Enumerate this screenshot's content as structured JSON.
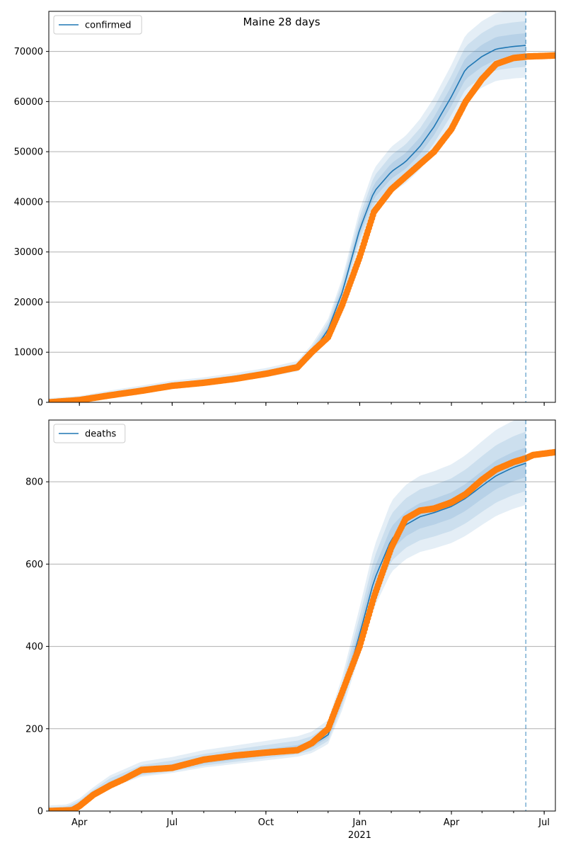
{
  "title": "Maine 28 days",
  "chart_data": [
    {
      "type": "line",
      "name": "confirmed-panel",
      "legend": [
        "confirmed"
      ],
      "legend_position": "top-left",
      "grid": "horizontal",
      "x_range": [
        "2020-03-02",
        "2021-07-12"
      ],
      "ylim": [
        0,
        78000
      ],
      "yticks": [
        0,
        10000,
        20000,
        30000,
        40000,
        50000,
        60000,
        70000
      ],
      "forecast_line_date": "2021-06-13",
      "colors": {
        "model": "#1f77b4",
        "observed": "#ff7f0e"
      },
      "model": {
        "dates": [
          "2020-03-02",
          "2020-04-01",
          "2020-05-01",
          "2020-06-01",
          "2020-07-01",
          "2020-08-01",
          "2020-09-01",
          "2020-10-01",
          "2020-11-01",
          "2020-11-15",
          "2020-12-01",
          "2020-12-15",
          "2021-01-01",
          "2021-01-15",
          "2021-02-01",
          "2021-02-15",
          "2021-03-01",
          "2021-03-15",
          "2021-04-01",
          "2021-04-15",
          "2021-05-01",
          "2021-05-15",
          "2021-06-01",
          "2021-06-13"
        ],
        "values": [
          0,
          400,
          1400,
          2300,
          3200,
          3800,
          4600,
          5500,
          6800,
          9800,
          14500,
          22000,
          34500,
          42000,
          46000,
          48000,
          51000,
          55000,
          61000,
          66500,
          69000,
          70500,
          71000,
          71200
        ],
        "band_pct": [
          0.03,
          0.06,
          0.09
        ]
      },
      "observed": {
        "dates": [
          "2020-03-02",
          "2020-04-01",
          "2020-05-01",
          "2020-06-01",
          "2020-07-01",
          "2020-08-01",
          "2020-09-01",
          "2020-10-01",
          "2020-11-01",
          "2020-11-15",
          "2020-12-01",
          "2020-12-15",
          "2021-01-01",
          "2021-01-15",
          "2021-02-01",
          "2021-02-15",
          "2021-03-01",
          "2021-03-15",
          "2021-04-01",
          "2021-04-15",
          "2021-05-01",
          "2021-05-15",
          "2021-06-01",
          "2021-06-15",
          "2021-07-01",
          "2021-07-12"
        ],
        "values": [
          0,
          450,
          1400,
          2300,
          3300,
          3900,
          4700,
          5700,
          7000,
          10000,
          13000,
          19500,
          29000,
          38000,
          42500,
          45000,
          47500,
          50000,
          54500,
          60000,
          64500,
          67500,
          68700,
          69000,
          69100,
          69200
        ]
      },
      "xticks": [
        {
          "date": "2020-04-01",
          "label": "Apr",
          "major": true
        },
        {
          "date": "2020-07-01",
          "label": "Jul",
          "major": true
        },
        {
          "date": "2020-10-01",
          "label": "Oct",
          "major": true
        },
        {
          "date": "2021-01-01",
          "label": "Jan",
          "major": true
        },
        {
          "date": "2021-04-01",
          "label": "Apr",
          "major": true
        },
        {
          "date": "2021-07-01",
          "label": "Jul",
          "major": true
        }
      ],
      "year_label": "2021"
    },
    {
      "type": "line",
      "name": "deaths-panel",
      "legend": [
        "deaths"
      ],
      "legend_position": "top-left",
      "grid": "horizontal",
      "x_range": [
        "2020-03-02",
        "2021-07-12"
      ],
      "ylim": [
        0,
        950
      ],
      "yticks": [
        0,
        200,
        400,
        600,
        800
      ],
      "forecast_line_date": "2021-06-13",
      "colors": {
        "model": "#1f77b4",
        "observed": "#ff7f0e"
      },
      "model": {
        "dates": [
          "2020-03-02",
          "2020-03-20",
          "2020-04-01",
          "2020-04-15",
          "2020-05-01",
          "2020-06-01",
          "2020-07-01",
          "2020-08-01",
          "2020-09-01",
          "2020-10-01",
          "2020-11-01",
          "2020-11-15",
          "2020-12-01",
          "2020-12-15",
          "2021-01-01",
          "2021-01-15",
          "2021-02-01",
          "2021-02-15",
          "2021-03-01",
          "2021-03-15",
          "2021-04-01",
          "2021-04-15",
          "2021-05-01",
          "2021-05-15",
          "2021-06-01",
          "2021-06-13"
        ],
        "values": [
          0,
          2,
          15,
          40,
          65,
          95,
          105,
          120,
          130,
          140,
          150,
          160,
          185,
          280,
          430,
          560,
          660,
          695,
          715,
          725,
          740,
          760,
          790,
          815,
          835,
          845
        ],
        "band_pct": [
          0.04,
          0.08,
          0.12
        ]
      },
      "observed": {
        "dates": [
          "2020-03-02",
          "2020-03-25",
          "2020-04-01",
          "2020-04-15",
          "2020-05-01",
          "2020-05-15",
          "2020-06-01",
          "2020-07-01",
          "2020-08-01",
          "2020-09-01",
          "2020-10-01",
          "2020-11-01",
          "2020-11-15",
          "2020-12-01",
          "2020-12-15",
          "2021-01-01",
          "2021-01-15",
          "2021-02-01",
          "2021-02-15",
          "2021-03-01",
          "2021-03-15",
          "2021-04-01",
          "2021-04-15",
          "2021-05-01",
          "2021-05-15",
          "2021-06-01",
          "2021-06-13",
          "2021-06-20",
          "2021-07-12"
        ],
        "values": [
          0,
          2,
          12,
          40,
          62,
          78,
          100,
          105,
          125,
          135,
          142,
          148,
          165,
          200,
          290,
          400,
          520,
          640,
          710,
          730,
          735,
          750,
          770,
          805,
          830,
          848,
          857,
          865,
          872
        ]
      },
      "xticks": [
        {
          "date": "2020-04-01",
          "label": "Apr",
          "major": true
        },
        {
          "date": "2020-07-01",
          "label": "Jul",
          "major": true
        },
        {
          "date": "2020-10-01",
          "label": "Oct",
          "major": true
        },
        {
          "date": "2021-01-01",
          "label": "Jan",
          "major": true
        },
        {
          "date": "2021-04-01",
          "label": "Apr",
          "major": true
        },
        {
          "date": "2021-07-01",
          "label": "Jul",
          "major": true
        }
      ],
      "year_label": "2021"
    }
  ]
}
